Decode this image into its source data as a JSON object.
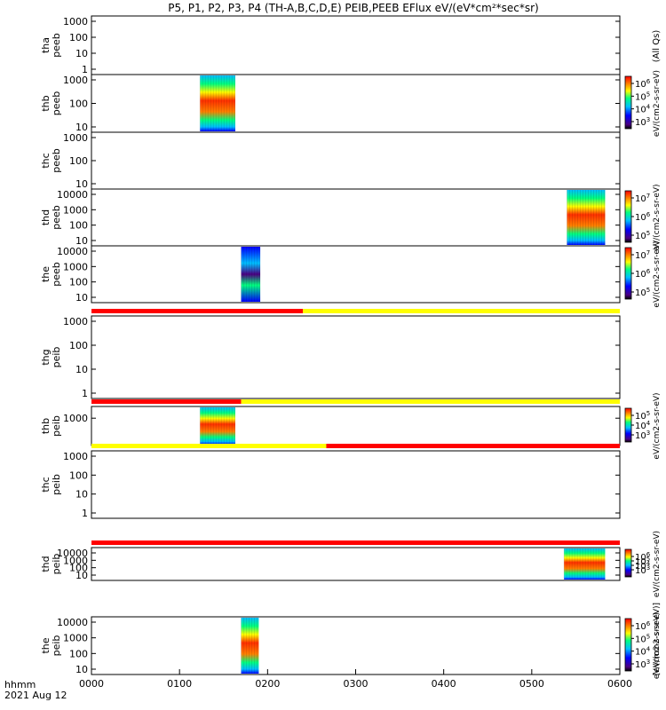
{
  "title": "P5, P1, P2, P3, P4 (TH-A,B,C,D,E) PEIB,PEEB EFlux eV/(eV*cm²*sec*sr)",
  "footer": {
    "hhmm_label": "hhmm",
    "date_label": "2021 Aug 12"
  },
  "colorbar_side_label_all_qs": "(All Qs)",
  "colorbar_side_label_units": "eV/(cm2-s-sr-eV)",
  "colorbar_side_label_units_bracket": "[eV/(cm2-s-sr-eV)]",
  "chart_data": {
    "type": "heatmap",
    "x_range_hhmm": [
      "0000",
      "0600"
    ],
    "x_tick_labels": [
      "0000",
      "0100",
      "0200",
      "0300",
      "0400",
      "0500",
      "0600"
    ],
    "colorscale": [
      "#4b0082",
      "#0000ff",
      "#00bfff",
      "#00ff80",
      "#ffff00",
      "#ff8000",
      "#ff0000"
    ],
    "panels": [
      {
        "ylabel_line1": "tha",
        "ylabel_line2": "peeb",
        "y_ticks": [
          "1000",
          "100",
          "10",
          "1"
        ],
        "has_colorbar": false,
        "colorbar_ticks": [],
        "data_bursts": [],
        "flag_bar": []
      },
      {
        "ylabel_line1": "thb",
        "ylabel_line2": "peeb",
        "y_ticks": [
          "1000",
          "100",
          "10"
        ],
        "has_colorbar": true,
        "colorbar_ticks": [
          "10^6",
          "10^5",
          "10^4",
          "10^3"
        ],
        "data_bursts": [
          {
            "start_hhmm": "0114",
            "end_hhmm": "0138"
          }
        ],
        "flag_bar": []
      },
      {
        "ylabel_line1": "thc",
        "ylabel_line2": "peeb",
        "y_ticks": [
          "1000",
          "100",
          "10"
        ],
        "has_colorbar": false,
        "colorbar_ticks": [],
        "data_bursts": [],
        "flag_bar": []
      },
      {
        "ylabel_line1": "thd",
        "ylabel_line2": "peeb",
        "y_ticks": [
          "10000",
          "1000",
          "100",
          "10"
        ],
        "has_colorbar": true,
        "colorbar_ticks": [
          "10^7",
          "10^6",
          "10^5"
        ],
        "data_bursts": [
          {
            "start_hhmm": "0524",
            "end_hhmm": "0550"
          }
        ],
        "flag_bar": []
      },
      {
        "ylabel_line1": "the",
        "ylabel_line2": "peeb",
        "y_ticks": [
          "10000",
          "1000",
          "100",
          "10"
        ],
        "has_colorbar": true,
        "colorbar_ticks": [
          "10^7",
          "10^6",
          "10^5"
        ],
        "data_bursts": [
          {
            "start_hhmm": "0142",
            "end_hhmm": "0155"
          }
        ],
        "flag_bar": []
      },
      {
        "ylabel_line1": "thg",
        "ylabel_line2": "peib",
        "y_ticks": [
          "1000",
          "100",
          "10",
          "1"
        ],
        "has_colorbar": false,
        "colorbar_ticks": [],
        "data_bursts": [],
        "flag_bar": [
          {
            "start_hhmm": "0000",
            "end_hhmm": "0224",
            "color": "red"
          },
          {
            "start_hhmm": "0224",
            "end_hhmm": "0600",
            "color": "yellow"
          }
        ]
      },
      {
        "ylabel_line1": "thb",
        "ylabel_line2": "peib",
        "y_ticks": [
          "1000"
        ],
        "has_colorbar": true,
        "colorbar_ticks": [
          "10^5",
          "10^4",
          "10^3"
        ],
        "data_bursts": [
          {
            "start_hhmm": "0114",
            "end_hhmm": "0138"
          }
        ],
        "flag_bar": [
          {
            "start_hhmm": "0000",
            "end_hhmm": "0142",
            "color": "red"
          },
          {
            "start_hhmm": "0142",
            "end_hhmm": "0600",
            "color": "yellow"
          }
        ]
      },
      {
        "ylabel_line1": "thc",
        "ylabel_line2": "peib",
        "y_ticks": [
          "1000",
          "100",
          "10",
          "1"
        ],
        "has_colorbar": false,
        "colorbar_ticks": [],
        "data_bursts": [],
        "flag_bar": [
          {
            "start_hhmm": "0000",
            "end_hhmm": "0240",
            "color": "yellow"
          },
          {
            "start_hhmm": "0240",
            "end_hhmm": "0600",
            "color": "red"
          }
        ]
      },
      {
        "ylabel_line1": "thd",
        "ylabel_line2": "peib",
        "y_ticks": [
          "10000",
          "1000",
          "100",
          "10"
        ],
        "has_colorbar": true,
        "colorbar_ticks": [
          "10^6",
          "10^5",
          "10^4",
          "10^3"
        ],
        "data_bursts": [
          {
            "start_hhmm": "0522",
            "end_hhmm": "0550"
          }
        ],
        "flag_bar": [
          {
            "start_hhmm": "0000",
            "end_hhmm": "0600",
            "color": "red"
          }
        ]
      },
      {
        "ylabel_line1": "the",
        "ylabel_line2": "peib",
        "y_ticks": [
          "10000",
          "1000",
          "100",
          "10"
        ],
        "has_colorbar": true,
        "colorbar_ticks": [
          "10^6",
          "10^5",
          "10^4",
          "10^3"
        ],
        "data_bursts": [
          {
            "start_hhmm": "0142",
            "end_hhmm": "0154"
          }
        ],
        "flag_bar": []
      }
    ]
  }
}
